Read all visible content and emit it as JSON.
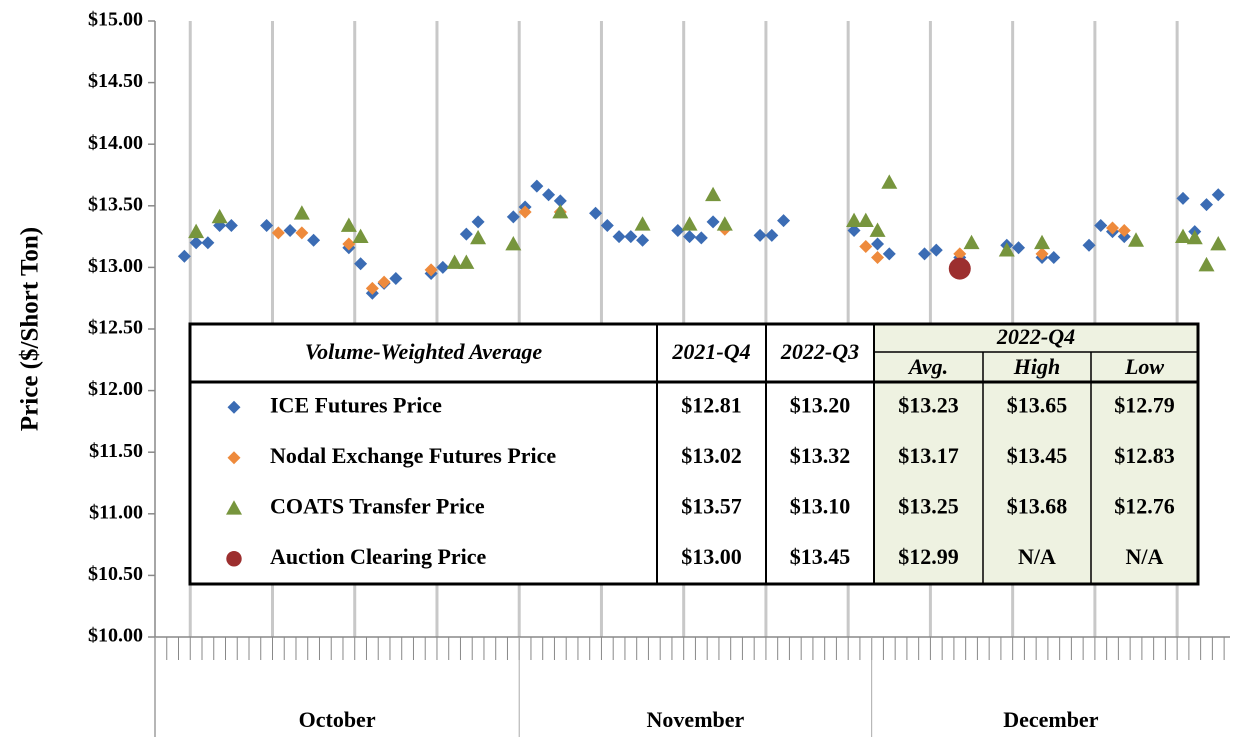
{
  "chart_data": {
    "type": "scatter",
    "y_label": "Price ($/Short Ton)",
    "ylim": [
      10,
      15
    ],
    "yticks": [
      {
        "value": 10,
        "label": "$10.00"
      },
      {
        "value": 10.5,
        "label": "$10.50"
      },
      {
        "value": 11,
        "label": "$11.00"
      },
      {
        "value": 11.5,
        "label": "$11.50"
      },
      {
        "value": 12,
        "label": "$12.00"
      },
      {
        "value": 12.5,
        "label": "$12.50"
      },
      {
        "value": 13,
        "label": "$13.00"
      },
      {
        "value": 13.5,
        "label": "$13.50"
      },
      {
        "value": 14,
        "label": "$14.00"
      },
      {
        "value": 14.5,
        "label": "$14.50"
      },
      {
        "value": 15,
        "label": "$15.00"
      }
    ],
    "xlim": [
      0.5,
      92
    ],
    "x_gridlines": [
      3.5,
      10.5,
      17.5,
      24.5,
      31.5,
      38.5,
      45.5,
      52.5,
      59.5,
      66.5,
      73.5,
      80.5,
      87.5
    ],
    "x_groups": [
      {
        "label": "October",
        "range": [
          0.5,
          31.5
        ]
      },
      {
        "label": "November",
        "range": [
          31.5,
          61.5
        ]
      },
      {
        "label": "December",
        "range": [
          61.5,
          92
        ]
      }
    ],
    "series": [
      {
        "name": "ICE Futures Price",
        "color": "#3b6cb4",
        "marker": "diamond",
        "x": [
          3,
          4,
          5,
          6,
          7,
          10,
          12,
          14,
          17,
          18,
          19,
          20,
          21,
          24,
          25,
          27,
          28,
          31,
          32,
          33,
          34,
          35,
          38,
          39,
          40,
          41,
          42,
          45,
          46,
          47,
          48,
          52,
          53,
          54,
          60,
          62,
          63,
          66,
          67,
          69,
          73,
          74,
          76,
          77,
          80,
          81,
          82,
          83,
          88,
          89,
          90,
          91
        ],
        "values": [
          13.09,
          13.2,
          13.2,
          13.34,
          13.34,
          13.34,
          13.3,
          13.22,
          13.16,
          13.03,
          12.79,
          12.87,
          12.91,
          12.95,
          13.0,
          13.27,
          13.37,
          13.41,
          13.49,
          13.66,
          13.59,
          13.54,
          13.44,
          13.34,
          13.25,
          13.25,
          13.22,
          13.3,
          13.25,
          13.24,
          13.37,
          13.26,
          13.26,
          13.38,
          13.3,
          13.19,
          13.11,
          13.11,
          13.14,
          13.08,
          13.18,
          13.16,
          13.08,
          13.08,
          13.18,
          13.34,
          13.29,
          13.25,
          13.56,
          13.29,
          13.51,
          13.59
        ]
      },
      {
        "name": "Nodal Exchange Futures Price",
        "color": "#ee8a3c",
        "marker": "diamond",
        "x": [
          11,
          13,
          17,
          19,
          20,
          24,
          32,
          35,
          49,
          61,
          62,
          69,
          76,
          82,
          83
        ],
        "values": [
          13.28,
          13.28,
          13.19,
          12.83,
          12.88,
          12.98,
          13.45,
          13.45,
          13.31,
          13.17,
          13.08,
          13.11,
          13.11,
          13.32,
          13.3
        ]
      },
      {
        "name": "COATS Transfer Price",
        "color": "#77953d",
        "marker": "triangle",
        "x": [
          4,
          6,
          13,
          17,
          18,
          26,
          27,
          28,
          31,
          35,
          42,
          46,
          48,
          49,
          60,
          61,
          62,
          63,
          70,
          73,
          76,
          84,
          88,
          89,
          90,
          91
        ],
        "values": [
          13.29,
          13.41,
          13.44,
          13.34,
          13.25,
          13.04,
          13.04,
          13.24,
          13.19,
          13.45,
          13.35,
          13.35,
          13.59,
          13.35,
          13.38,
          13.38,
          13.3,
          13.69,
          13.2,
          13.14,
          13.2,
          13.22,
          13.25,
          13.24,
          13.02,
          13.19
        ]
      },
      {
        "name": "Auction Clearing Price",
        "color": "#9c2f2f",
        "marker": "circle",
        "x": [
          69
        ],
        "values": [
          12.99
        ]
      }
    ]
  },
  "table": {
    "header": [
      "Volume-Weighted Average",
      "2021-Q4",
      "2022-Q3",
      "2022-Q4"
    ],
    "subheader": [
      "Avg.",
      "High",
      "Low"
    ],
    "rows": [
      [
        "$12.81",
        "$13.20",
        "$13.23",
        "$13.65",
        "$12.79"
      ],
      [
        "$13.02",
        "$13.32",
        "$13.17",
        "$13.45",
        "$12.83"
      ],
      [
        "$13.57",
        "$13.10",
        "$13.25",
        "$13.68",
        "$12.76"
      ],
      [
        "$13.00",
        "$13.45",
        "$12.99",
        "N/A",
        "N/A"
      ]
    ]
  }
}
